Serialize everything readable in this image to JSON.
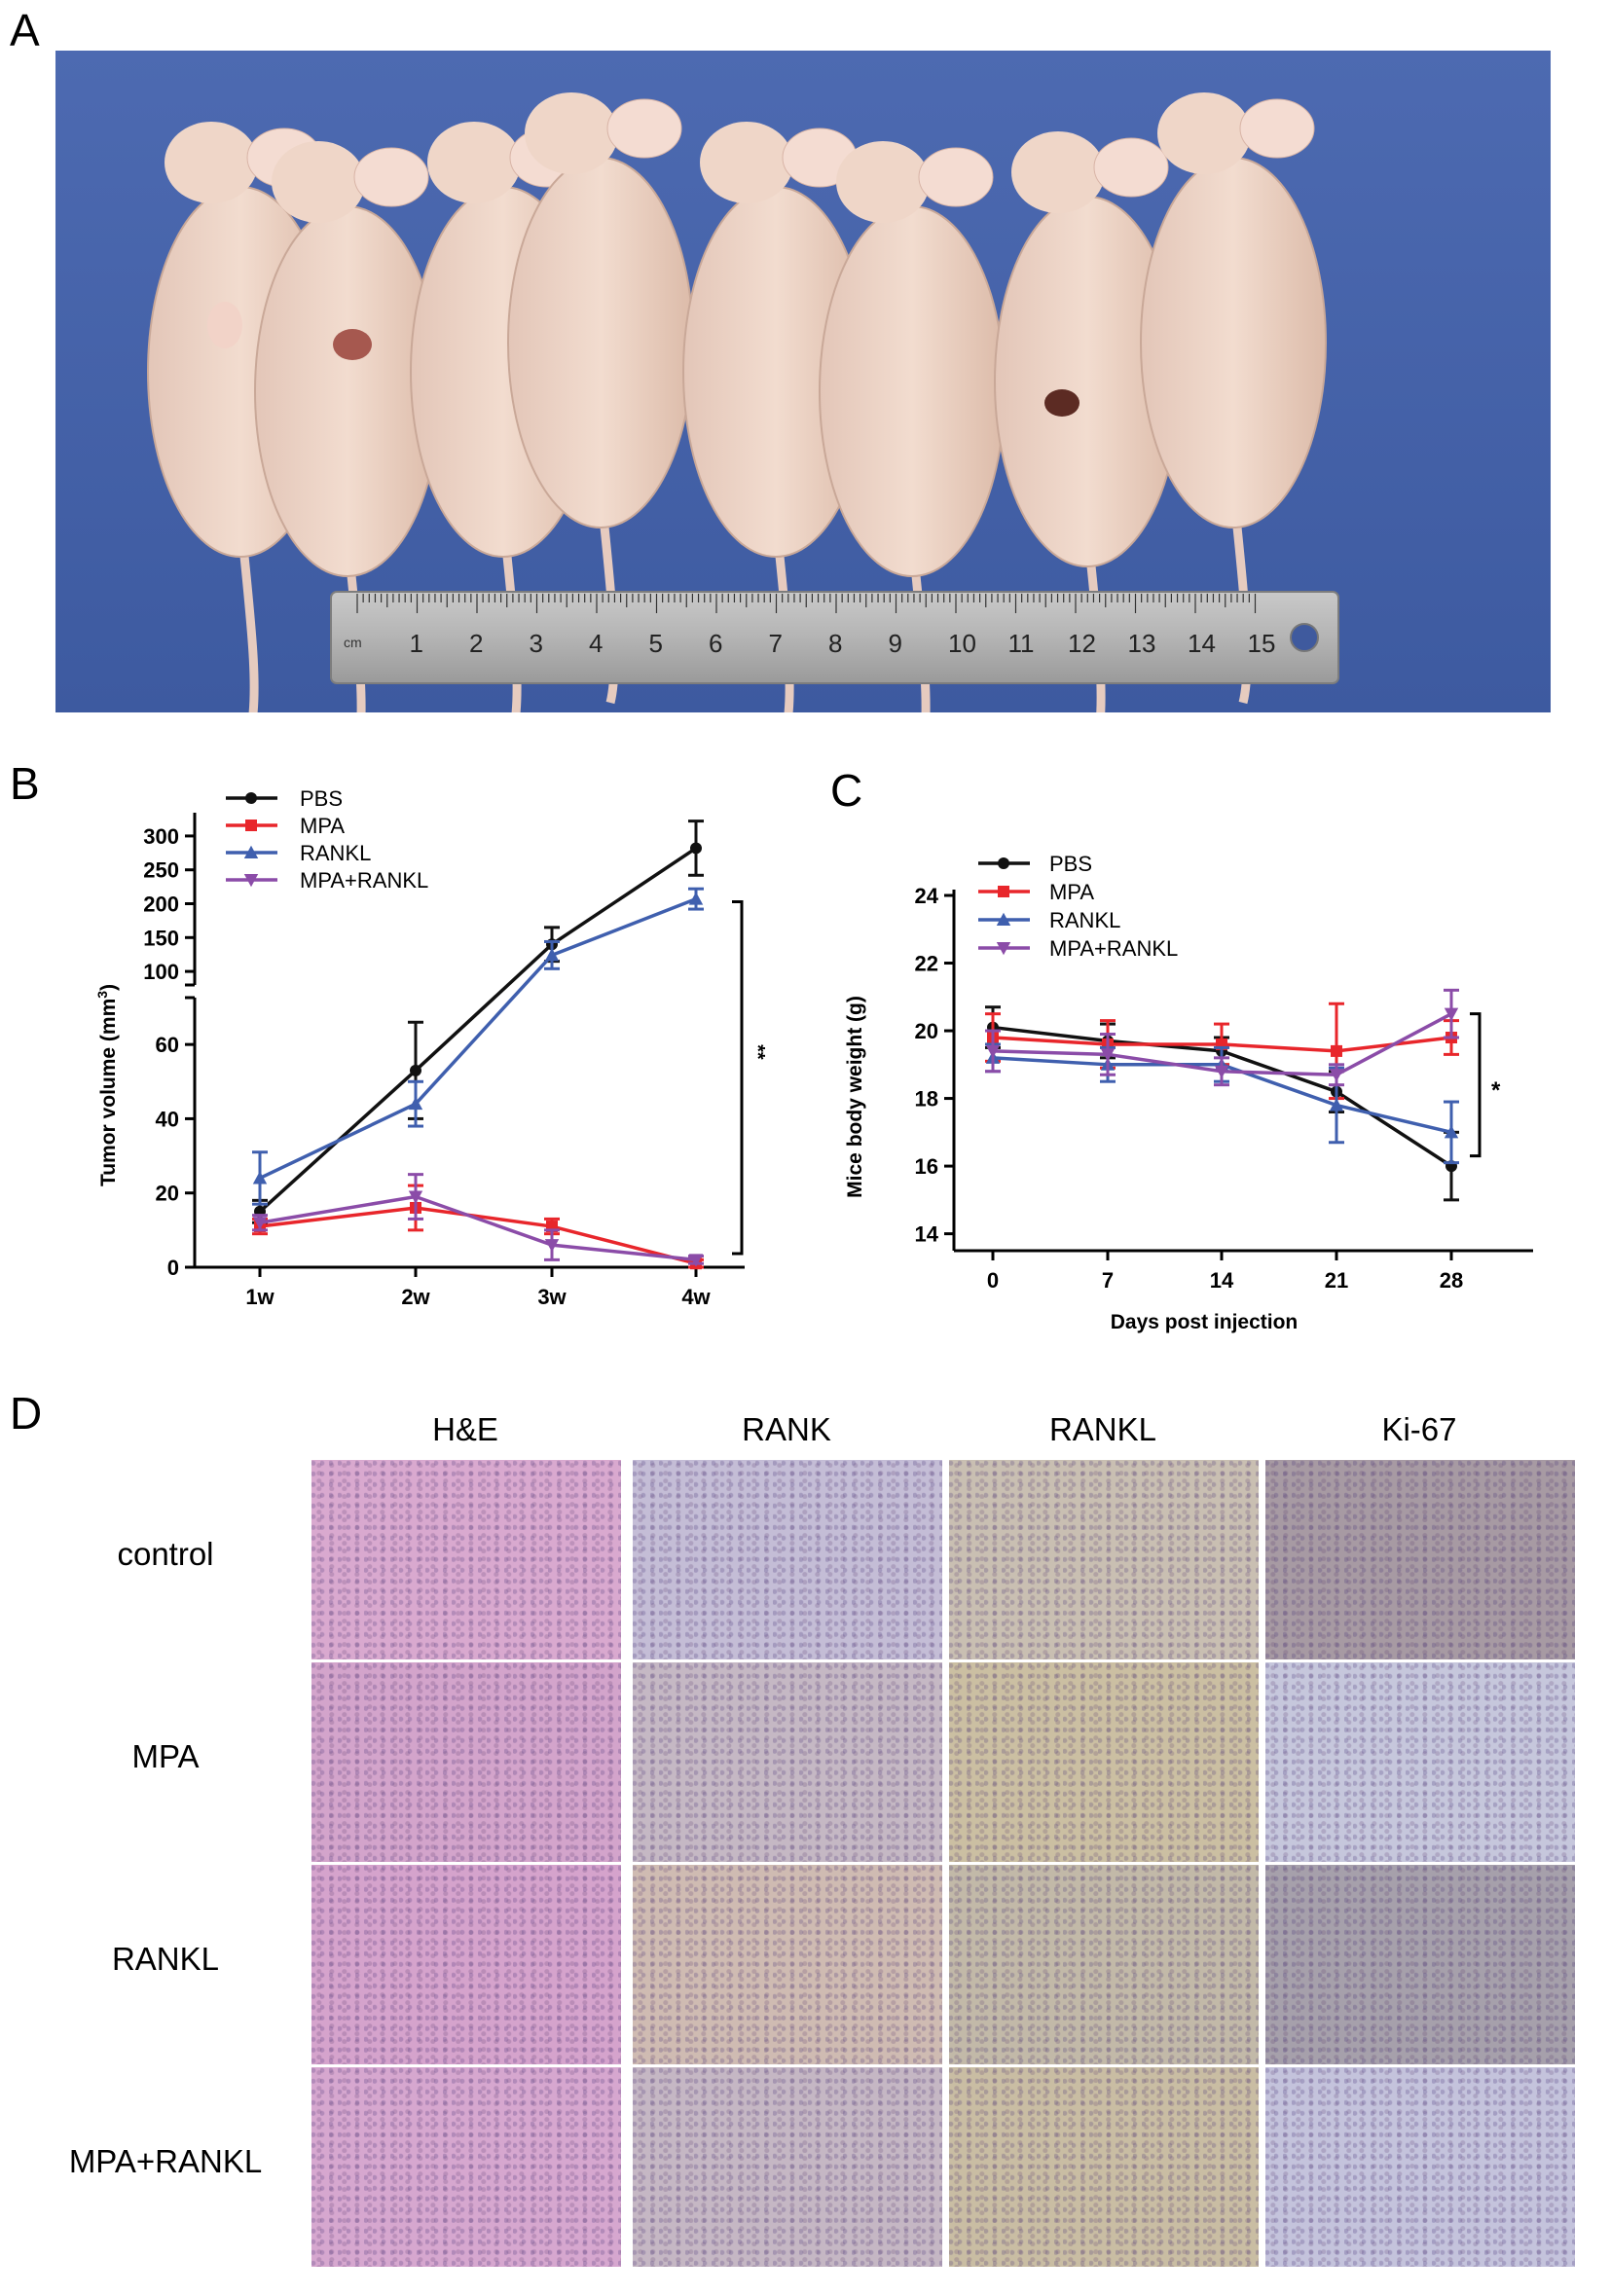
{
  "panels": {
    "a": "A",
    "b": "B",
    "c": "C",
    "d": "D"
  },
  "ruler": {
    "unit": "cm",
    "marks": [
      "1",
      "2",
      "3",
      "4",
      "5",
      "6",
      "7",
      "8",
      "9",
      "10",
      "11",
      "12",
      "13",
      "14",
      "15"
    ]
  },
  "chart_data": [
    {
      "type": "line",
      "panel": "B",
      "ylabel": "Tumor volume (mm³)",
      "categories": [
        "1w",
        "2w",
        "3w",
        "4w"
      ],
      "broken_axis": true,
      "ylim_lower": [
        0,
        70
      ],
      "ylim_upper": [
        80,
        320
      ],
      "yticks_lower": [
        "0",
        "20",
        "40",
        "60"
      ],
      "yticks_upper": [
        "100",
        "150",
        "200",
        "250",
        "300"
      ],
      "significance": "**",
      "legend_position": "top-left",
      "series": [
        {
          "name": "PBS",
          "color": "#111111",
          "marker": "circle",
          "values": [
            15,
            53,
            140,
            282
          ],
          "err": [
            3,
            13,
            25,
            40
          ]
        },
        {
          "name": "MPA",
          "color": "#e8262b",
          "marker": "square",
          "values": [
            11,
            16,
            11,
            1
          ],
          "err": [
            2,
            6,
            2,
            1
          ]
        },
        {
          "name": "RANKL",
          "color": "#3f5fae",
          "marker": "triangle-up",
          "values": [
            24,
            44,
            124,
            207
          ],
          "err": [
            7,
            6,
            20,
            15
          ]
        },
        {
          "name": "MPA+RANKL",
          "color": "#8b4ca8",
          "marker": "triangle-down",
          "values": [
            12,
            19,
            6,
            2
          ],
          "err": [
            2,
            6,
            4,
            1
          ]
        }
      ]
    },
    {
      "type": "line",
      "panel": "C",
      "xlabel": "Days post injection",
      "ylabel": "Mice body weight (g)",
      "x": [
        0,
        7,
        14,
        21,
        28
      ],
      "xticks": [
        "0",
        "7",
        "14",
        "21",
        "28"
      ],
      "ylim": [
        13.5,
        24
      ],
      "yticks": [
        "14",
        "16",
        "18",
        "20",
        "22",
        "24"
      ],
      "significance": "*",
      "legend_position": "top-left",
      "series": [
        {
          "name": "PBS",
          "color": "#111111",
          "marker": "circle",
          "values": [
            20.1,
            19.7,
            19.4,
            18.2,
            16.0
          ],
          "err": [
            0.6,
            0.5,
            0.4,
            0.6,
            1.0
          ]
        },
        {
          "name": "MPA",
          "color": "#e8262b",
          "marker": "square",
          "values": [
            19.8,
            19.6,
            19.6,
            19.4,
            19.8
          ],
          "err": [
            0.7,
            0.7,
            0.6,
            1.4,
            0.5
          ]
        },
        {
          "name": "RANKL",
          "color": "#3f5fae",
          "marker": "triangle-up",
          "values": [
            19.2,
            19.0,
            19.0,
            17.8,
            17.0
          ],
          "err": [
            0.4,
            0.5,
            0.5,
            1.1,
            0.9
          ]
        },
        {
          "name": "MPA+RANKL",
          "color": "#8b4ca8",
          "marker": "triangle-down",
          "values": [
            19.4,
            19.3,
            18.8,
            18.7,
            20.5
          ],
          "err": [
            0.6,
            0.6,
            0.4,
            0.3,
            0.7
          ]
        }
      ]
    }
  ],
  "histology": {
    "columns": [
      "H&E",
      "RANK",
      "RANKL",
      "Ki-67"
    ],
    "rows": [
      "control",
      "MPA",
      "RANKL",
      "MPA+RANKL"
    ],
    "tile_colors": [
      [
        "#d9a9cf",
        "#c4bdd6",
        "#c9bfb2",
        "#a79aa3"
      ],
      [
        "#d3a4cb",
        "#c5b8c4",
        "#cbbfa2",
        "#c6c7dc"
      ],
      [
        "#d5a3cc",
        "#cfbbb2",
        "#c2b9a8",
        "#a6a0ab"
      ],
      [
        "#d6a7cf",
        "#c5b7c4",
        "#c9bda3",
        "#c4c3dc"
      ]
    ]
  }
}
